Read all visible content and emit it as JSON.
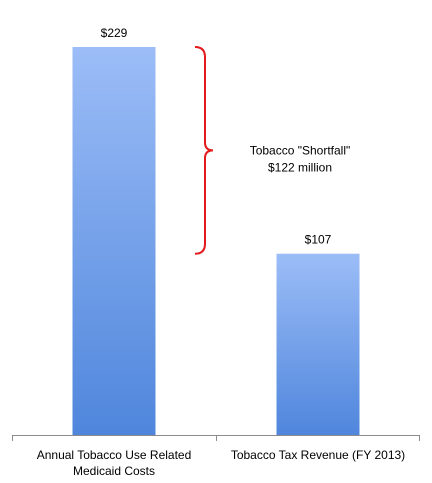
{
  "chart_data": {
    "type": "bar",
    "categories": [
      "Annual Tobacco Use Related Medicaid Costs",
      "Tobacco Tax Revenue (FY 2013)"
    ],
    "values": [
      229,
      107
    ],
    "value_labels": [
      "$229",
      "$107"
    ],
    "color": "#4f86dc",
    "annotation": [
      "Tobacco \"Shortfall\"",
      "$122 million"
    ],
    "annotation_color": "#e31a1c"
  }
}
